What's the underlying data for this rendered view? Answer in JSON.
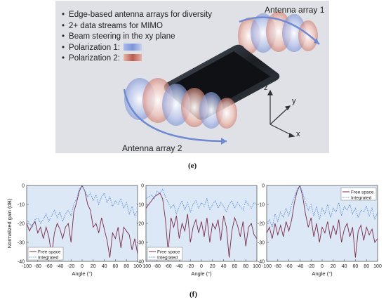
{
  "panel_e": {
    "bullets": [
      "Edge-based antenna arrays for diversity",
      "2+ data streams for MIMO",
      "Beam steering in the xy plane",
      "Polarization 1:",
      "Polarization 2:"
    ],
    "array1_label": "Antenna array 1",
    "array2_label": "Antenna array 2",
    "axes": {
      "z": "z",
      "y": "y",
      "x": "x"
    },
    "caption": "(e)",
    "polarization_colors": {
      "polarization_1": "#7c95d8",
      "polarization_2": "#b85b4f"
    }
  },
  "panel_f": {
    "caption": "(f)"
  },
  "chart_data": [
    {
      "type": "line",
      "ylabel": "Normalized gain (dB)",
      "xlabel": "Angle (°)",
      "xlim": [
        -100,
        100
      ],
      "ylim": [
        -40,
        0
      ],
      "x_ticks": [
        "-100",
        "-80",
        "-60",
        "-40",
        "-20",
        "0",
        "20",
        "40",
        "60",
        "80",
        "100"
      ],
      "y_ticks": [
        "0",
        "-10",
        "-20",
        "-30",
        "-40"
      ],
      "legend": {
        "position": "bottom-left",
        "entries": [
          "Free space",
          "Integrated"
        ]
      },
      "series": [
        {
          "name": "Free space",
          "color": "#7a2a4a",
          "x": [
            -100,
            -95,
            -90,
            -85,
            -80,
            -75,
            -70,
            -65,
            -60,
            -55,
            -50,
            -45,
            -40,
            -35,
            -30,
            -25,
            -20,
            -15,
            -10,
            -5,
            0,
            5,
            10,
            15,
            20,
            25,
            30,
            35,
            40,
            45,
            50,
            55,
            60,
            65,
            70,
            75,
            80,
            85,
            90,
            95,
            100
          ],
          "y": [
            -20,
            -24,
            -21,
            -19,
            -25,
            -22,
            -28,
            -22,
            -27,
            -37,
            -25,
            -20,
            -23,
            -28,
            -22,
            -20,
            -30,
            -14,
            -9,
            -3,
            0,
            -3,
            -10,
            -13,
            -22,
            -20,
            -25,
            -17,
            -23,
            -29,
            -38,
            -25,
            -28,
            -22,
            -33,
            -22,
            -24,
            -26,
            -34,
            -28,
            -36
          ]
        },
        {
          "name": "Integrated",
          "color": "#5b8fd8",
          "x": [
            -100,
            -95,
            -90,
            -85,
            -80,
            -75,
            -70,
            -65,
            -60,
            -55,
            -50,
            -45,
            -40,
            -35,
            -30,
            -25,
            -20,
            -15,
            -10,
            -5,
            0,
            5,
            10,
            15,
            20,
            25,
            30,
            35,
            40,
            45,
            50,
            55,
            60,
            65,
            70,
            75,
            80,
            85,
            90,
            95,
            100
          ],
          "y": [
            -18,
            -20,
            -22,
            -18,
            -17,
            -20,
            -18,
            -15,
            -19,
            -16,
            -13,
            -17,
            -14,
            -19,
            -15,
            -13,
            -16,
            -10,
            -7,
            -2,
            0,
            -3,
            -6,
            -4,
            -8,
            -5,
            -10,
            -6,
            -4,
            -9,
            -6,
            -11,
            -8,
            -10,
            -7,
            -12,
            -9,
            -15,
            -11,
            -16,
            -13
          ]
        }
      ]
    },
    {
      "type": "line",
      "xlabel": "Angle (°)",
      "xlim": [
        -100,
        100
      ],
      "ylim": [
        -40,
        0
      ],
      "x_ticks": [
        "-100",
        "-80",
        "-60",
        "-40",
        "-20",
        "0",
        "20",
        "40",
        "60",
        "80",
        "100"
      ],
      "legend": {
        "position": "bottom-left",
        "entries": [
          "Free space",
          "Integrated"
        ]
      },
      "series": [
        {
          "name": "Free space",
          "color": "#7a2a4a",
          "x": [
            -100,
            -95,
            -90,
            -85,
            -80,
            -75,
            -70,
            -65,
            -60,
            -55,
            -50,
            -45,
            -40,
            -35,
            -30,
            -25,
            -20,
            -15,
            -10,
            -5,
            0,
            5,
            10,
            15,
            20,
            25,
            30,
            35,
            40,
            45,
            50,
            55,
            60,
            65,
            70,
            75,
            80,
            85,
            90,
            95,
            100
          ],
          "y": [
            -12,
            -10,
            -8,
            -6,
            -5,
            -4,
            -7,
            -18,
            -35,
            -17,
            -22,
            -16,
            -28,
            -20,
            -24,
            -15,
            -30,
            -22,
            -18,
            -25,
            -19,
            -27,
            -17,
            -30,
            -20,
            -23,
            -18,
            -29,
            -16,
            -22,
            -38,
            -24,
            -17,
            -21,
            -27,
            -19,
            -32,
            -22,
            -20,
            -26,
            -28
          ]
        },
        {
          "name": "Integrated",
          "color": "#5b8fd8",
          "x": [
            -100,
            -95,
            -90,
            -85,
            -80,
            -75,
            -70,
            -65,
            -60,
            -55,
            -50,
            -45,
            -40,
            -35,
            -30,
            -25,
            -20,
            -15,
            -10,
            -5,
            0,
            5,
            10,
            15,
            20,
            25,
            30,
            35,
            40,
            45,
            50,
            55,
            60,
            65,
            70,
            75,
            80,
            85,
            90,
            95,
            100
          ],
          "y": [
            -7,
            -6,
            -5,
            -7,
            -3,
            -4,
            -2,
            -6,
            -9,
            -12,
            -10,
            -15,
            -11,
            -8,
            -13,
            -9,
            -14,
            -10,
            -8,
            -12,
            -9,
            -11,
            -7,
            -13,
            -10,
            -8,
            -12,
            -9,
            -11,
            -14,
            -10,
            -8,
            -12,
            -9,
            -11,
            -13,
            -8,
            -10,
            -12,
            -9,
            -10
          ]
        }
      ]
    },
    {
      "type": "line",
      "xlabel": "Angle (°)",
      "xlim": [
        -100,
        100
      ],
      "ylim": [
        -40,
        0
      ],
      "x_ticks": [
        "-100",
        "-80",
        "-60",
        "-40",
        "-20",
        "0",
        "20",
        "40",
        "60",
        "80",
        "100"
      ],
      "legend": {
        "position": "top-right",
        "entries": [
          "Free space",
          "Integrated"
        ]
      },
      "series": [
        {
          "name": "Free space",
          "color": "#7a2a4a",
          "x": [
            -100,
            -95,
            -90,
            -85,
            -80,
            -75,
            -70,
            -65,
            -60,
            -55,
            -50,
            -45,
            -40,
            -35,
            -30,
            -25,
            -20,
            -15,
            -10,
            -5,
            0,
            5,
            10,
            15,
            20,
            25,
            30,
            35,
            40,
            45,
            50,
            55,
            60,
            65,
            70,
            75,
            80,
            85,
            90,
            95,
            100
          ],
          "y": [
            -25,
            -22,
            -28,
            -20,
            -26,
            -21,
            -27,
            -19,
            -24,
            -18,
            -9,
            -3,
            0,
            -6,
            -15,
            -22,
            -17,
            -27,
            -20,
            -30,
            -22,
            -25,
            -19,
            -28,
            -21,
            -26,
            -18,
            -30,
            -23,
            -20,
            -27,
            -22,
            -38,
            -24,
            -21,
            -29,
            -22,
            -26,
            -23,
            -30,
            -28
          ]
        },
        {
          "name": "Integrated",
          "color": "#5b8fd8",
          "x": [
            -100,
            -95,
            -90,
            -85,
            -80,
            -75,
            -70,
            -65,
            -60,
            -55,
            -50,
            -45,
            -40,
            -35,
            -30,
            -25,
            -20,
            -15,
            -10,
            -5,
            0,
            5,
            10,
            15,
            20,
            25,
            30,
            35,
            40,
            45,
            50,
            55,
            60,
            65,
            70,
            75,
            80,
            85,
            90,
            95,
            100
          ],
          "y": [
            -20,
            -18,
            -22,
            -15,
            -19,
            -14,
            -17,
            -12,
            -16,
            -10,
            -6,
            -2,
            0,
            -4,
            -9,
            -13,
            -10,
            -16,
            -11,
            -18,
            -12,
            -15,
            -10,
            -17,
            -12,
            -14,
            -9,
            -16,
            -11,
            -13,
            -10,
            -15,
            -12,
            -17,
            -13,
            -14,
            -11,
            -16,
            -12,
            -18,
            -14
          ]
        }
      ]
    }
  ]
}
